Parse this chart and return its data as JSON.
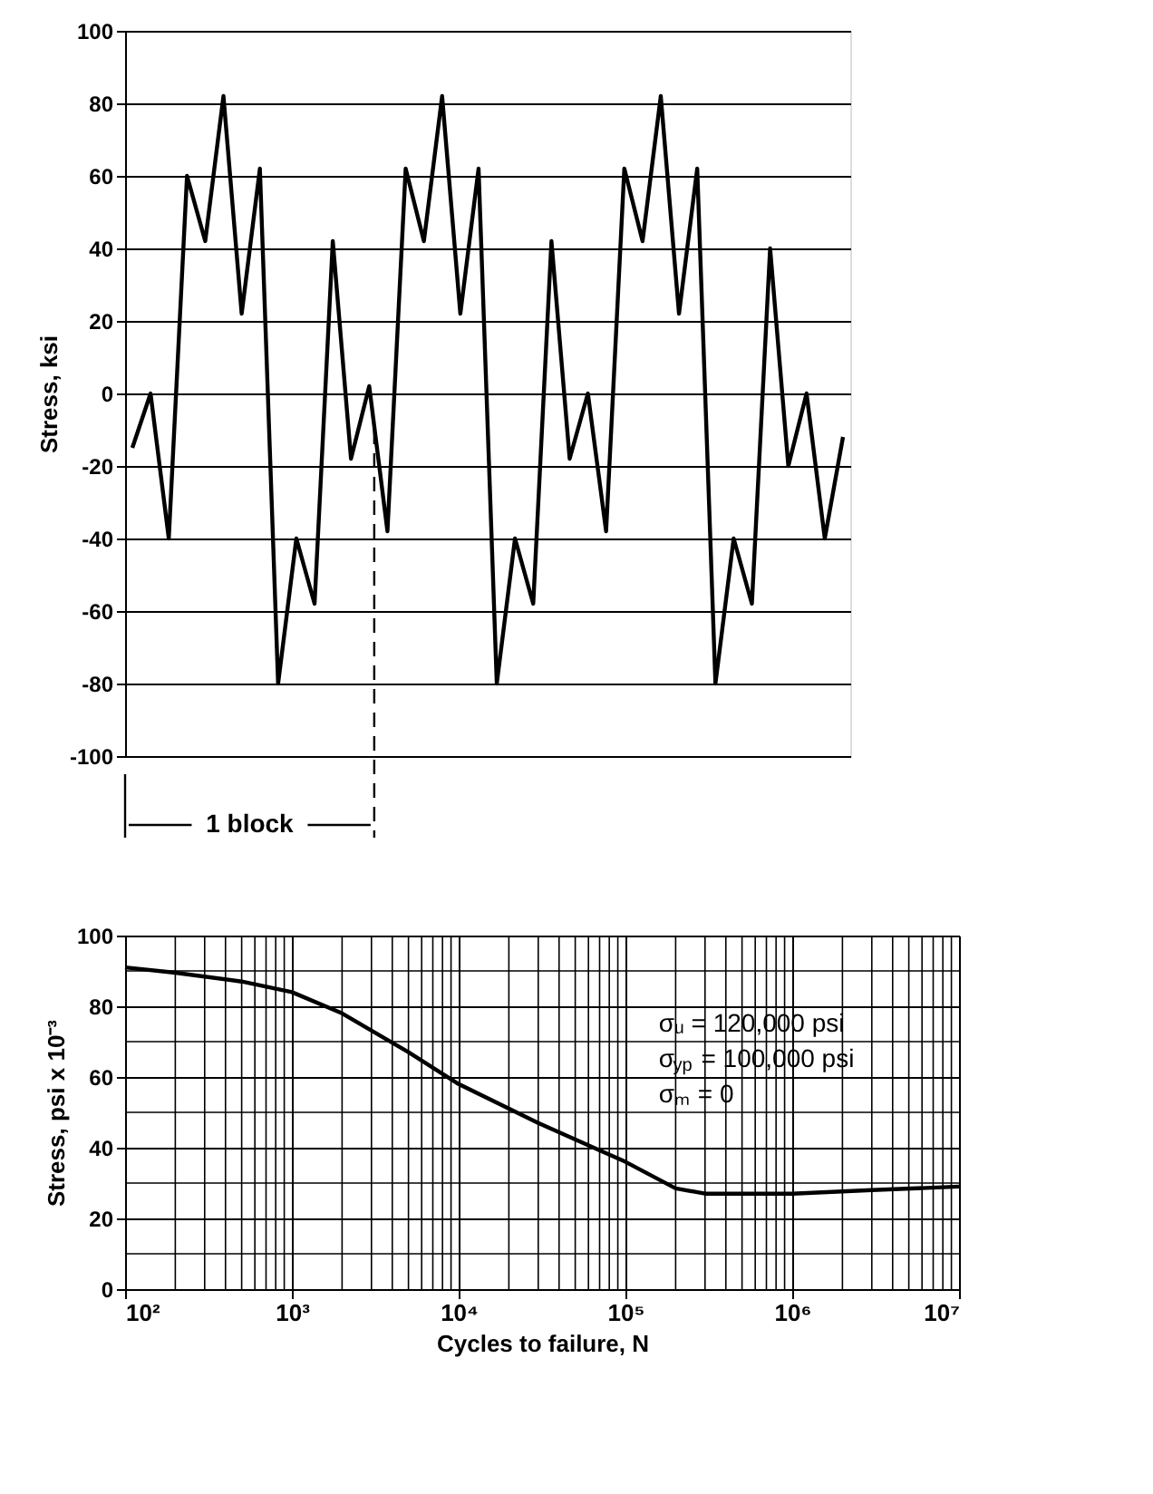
{
  "chart_data": [
    {
      "type": "line",
      "ylabel": "Stress, ksi",
      "categories": [
        null,
        null,
        null,
        null,
        null,
        null,
        null,
        null,
        null,
        null,
        null,
        null,
        null,
        null,
        null,
        null,
        null,
        null,
        null,
        null,
        null,
        null,
        null,
        null,
        null,
        null,
        null,
        null,
        null,
        null,
        null,
        null,
        null,
        null,
        null,
        null,
        null,
        null,
        null,
        null
      ],
      "series": [
        {
          "color": "#000000",
          "values": [
            -15,
            0,
            -40,
            60,
            42,
            82,
            22,
            62,
            -80,
            -40,
            -58,
            42,
            -18,
            2,
            -38,
            62,
            42,
            82,
            22,
            62,
            -80,
            -40,
            -58,
            42,
            -18,
            0,
            -38,
            62,
            42,
            82,
            22,
            62,
            -80,
            -40,
            -58,
            40,
            -20,
            0,
            -40,
            -12
          ]
        }
      ],
      "ylim": [
        -100,
        100
      ],
      "yticks": [
        -100,
        -80,
        -60,
        -40,
        -20,
        0,
        20,
        40,
        60,
        80,
        100
      ],
      "grid": "y",
      "legend": false,
      "marker": "none",
      "line_style": "solid",
      "annotations": [
        "1 block"
      ]
    },
    {
      "type": "line",
      "xlabel": "Cycles to failure, N",
      "ylabel": "Stress, psi x 10⁻³",
      "log": "x",
      "x": [
        100,
        200,
        500,
        1000,
        2000,
        5000,
        10000,
        30000,
        100000,
        200000,
        300000,
        1000000,
        3000000,
        10000000
      ],
      "series": [
        {
          "color": "#000000",
          "values": [
            91,
            89.5,
            87,
            84,
            78,
            67,
            58,
            47,
            36,
            28.5,
            27,
            27,
            28,
            29
          ]
        }
      ],
      "xlim": [
        100,
        10000000
      ],
      "xticks": [
        {
          "value": 100,
          "label": "10²"
        },
        {
          "value": 1000,
          "label": "10³"
        },
        {
          "value": 10000,
          "label": "10⁴"
        },
        {
          "value": 100000,
          "label": "10⁵"
        },
        {
          "value": 1000000,
          "label": "10⁶"
        },
        {
          "value": 10000000,
          "label": "10⁷"
        }
      ],
      "ylim": [
        0,
        100
      ],
      "yticks": [
        0,
        20,
        40,
        60,
        80,
        100
      ],
      "grid": true,
      "legend": false,
      "marker": "none",
      "line_style": "solid",
      "annotations": [
        "σᵤ = 120,000 psi",
        "σ$_{yp}$ = 100,000 psi",
        "σₘ = 0"
      ]
    }
  ]
}
